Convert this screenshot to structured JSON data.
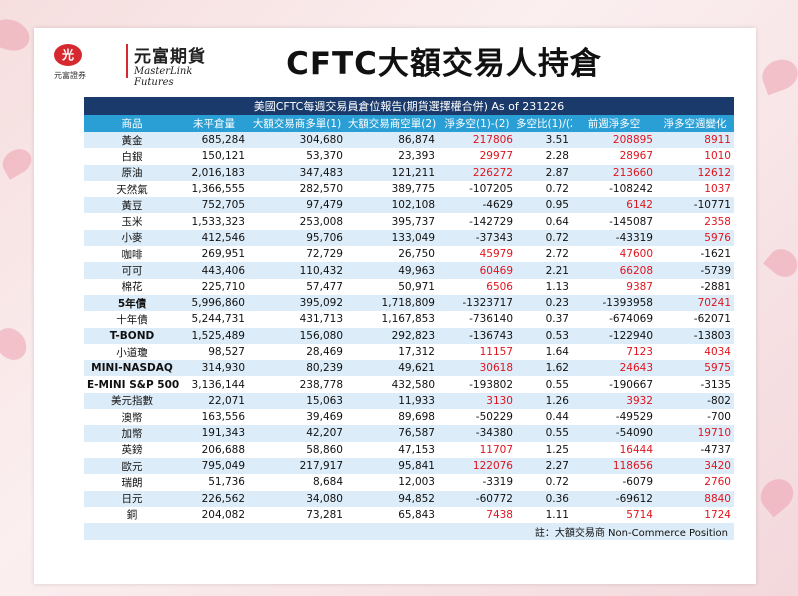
{
  "logo": {
    "badge": "光",
    "sub": "元富證券",
    "name": "元富期貨",
    "en": "MasterLink Futures"
  },
  "title": "CFTC大額交易人持倉",
  "table": {
    "caption": "美國CFTC每週交易員倉位報告(期貨選擇權合併) As of  231226",
    "headers": [
      "商品",
      "未平倉量",
      "大額交易商多單(1)",
      "大額交易商空單(2)",
      "淨多空(1)-(2)",
      "多空比(1)/(2)",
      "前週淨多空",
      "淨多空週變化"
    ],
    "rows": [
      {
        "name": "黃金",
        "oi": "685,284",
        "long": "304,680",
        "short": "86,874",
        "net": "217806",
        "ratio": "3.51",
        "prev": "208895",
        "chg": "8911",
        "net_red": true,
        "prev_red": true,
        "chg_red": true,
        "bold": false
      },
      {
        "name": "白銀",
        "oi": "150,121",
        "long": "53,370",
        "short": "23,393",
        "net": "29977",
        "ratio": "2.28",
        "prev": "28967",
        "chg": "1010",
        "net_red": true,
        "prev_red": true,
        "chg_red": true,
        "bold": false
      },
      {
        "name": "原油",
        "oi": "2,016,183",
        "long": "347,483",
        "short": "121,211",
        "net": "226272",
        "ratio": "2.87",
        "prev": "213660",
        "chg": "12612",
        "net_red": true,
        "prev_red": true,
        "chg_red": true,
        "bold": false
      },
      {
        "name": "天然氣",
        "oi": "1,366,555",
        "long": "282,570",
        "short": "389,775",
        "net": "-107205",
        "ratio": "0.72",
        "prev": "-108242",
        "chg": "1037",
        "net_red": false,
        "prev_red": false,
        "chg_red": true,
        "bold": false
      },
      {
        "name": "黃豆",
        "oi": "752,705",
        "long": "97,479",
        "short": "102,108",
        "net": "-4629",
        "ratio": "0.95",
        "prev": "6142",
        "chg": "-10771",
        "net_red": false,
        "prev_red": true,
        "chg_red": false,
        "bold": false
      },
      {
        "name": "玉米",
        "oi": "1,533,323",
        "long": "253,008",
        "short": "395,737",
        "net": "-142729",
        "ratio": "0.64",
        "prev": "-145087",
        "chg": "2358",
        "net_red": false,
        "prev_red": false,
        "chg_red": true,
        "bold": false
      },
      {
        "name": "小麥",
        "oi": "412,546",
        "long": "95,706",
        "short": "133,049",
        "net": "-37343",
        "ratio": "0.72",
        "prev": "-43319",
        "chg": "5976",
        "net_red": false,
        "prev_red": false,
        "chg_red": true,
        "bold": false
      },
      {
        "name": "咖啡",
        "oi": "269,951",
        "long": "72,729",
        "short": "26,750",
        "net": "45979",
        "ratio": "2.72",
        "prev": "47600",
        "chg": "-1621",
        "net_red": true,
        "prev_red": true,
        "chg_red": false,
        "bold": false
      },
      {
        "name": "可可",
        "oi": "443,406",
        "long": "110,432",
        "short": "49,963",
        "net": "60469",
        "ratio": "2.21",
        "prev": "66208",
        "chg": "-5739",
        "net_red": true,
        "prev_red": true,
        "chg_red": false,
        "bold": false
      },
      {
        "name": "棉花",
        "oi": "225,710",
        "long": "57,477",
        "short": "50,971",
        "net": "6506",
        "ratio": "1.13",
        "prev": "9387",
        "chg": "-2881",
        "net_red": true,
        "prev_red": true,
        "chg_red": false,
        "bold": false
      },
      {
        "name": "5年債",
        "oi": "5,996,860",
        "long": "395,092",
        "short": "1,718,809",
        "net": "-1323717",
        "ratio": "0.23",
        "prev": "-1393958",
        "chg": "70241",
        "net_red": false,
        "prev_red": false,
        "chg_red": true,
        "bold": true
      },
      {
        "name": "十年債",
        "oi": "5,244,731",
        "long": "431,713",
        "short": "1,167,853",
        "net": "-736140",
        "ratio": "0.37",
        "prev": "-674069",
        "chg": "-62071",
        "net_red": false,
        "prev_red": false,
        "chg_red": false,
        "bold": false
      },
      {
        "name": "T-BOND",
        "oi": "1,525,489",
        "long": "156,080",
        "short": "292,823",
        "net": "-136743",
        "ratio": "0.53",
        "prev": "-122940",
        "chg": "-13803",
        "net_red": false,
        "prev_red": false,
        "chg_red": false,
        "bold": true
      },
      {
        "name": "小道瓊",
        "oi": "98,527",
        "long": "28,469",
        "short": "17,312",
        "net": "11157",
        "ratio": "1.64",
        "prev": "7123",
        "chg": "4034",
        "net_red": true,
        "prev_red": true,
        "chg_red": true,
        "bold": false
      },
      {
        "name": "MINI-NASDAQ",
        "oi": "314,930",
        "long": "80,239",
        "short": "49,621",
        "net": "30618",
        "ratio": "1.62",
        "prev": "24643",
        "chg": "5975",
        "net_red": true,
        "prev_red": true,
        "chg_red": true,
        "bold": true
      },
      {
        "name": "E-MINI S&P 500",
        "oi": "3,136,144",
        "long": "238,778",
        "short": "432,580",
        "net": "-193802",
        "ratio": "0.55",
        "prev": "-190667",
        "chg": "-3135",
        "net_red": false,
        "prev_red": false,
        "chg_red": false,
        "bold": true
      },
      {
        "name": "美元指數",
        "oi": "22,071",
        "long": "15,063",
        "short": "11,933",
        "net": "3130",
        "ratio": "1.26",
        "prev": "3932",
        "chg": "-802",
        "net_red": true,
        "prev_red": true,
        "chg_red": false,
        "bold": false
      },
      {
        "name": "澳幣",
        "oi": "163,556",
        "long": "39,469",
        "short": "89,698",
        "net": "-50229",
        "ratio": "0.44",
        "prev": "-49529",
        "chg": "-700",
        "net_red": false,
        "prev_red": false,
        "chg_red": false,
        "bold": false
      },
      {
        "name": "加幣",
        "oi": "191,343",
        "long": "42,207",
        "short": "76,587",
        "net": "-34380",
        "ratio": "0.55",
        "prev": "-54090",
        "chg": "19710",
        "net_red": false,
        "prev_red": false,
        "chg_red": true,
        "bold": false
      },
      {
        "name": "英鎊",
        "oi": "206,688",
        "long": "58,860",
        "short": "47,153",
        "net": "11707",
        "ratio": "1.25",
        "prev": "16444",
        "chg": "-4737",
        "net_red": true,
        "prev_red": true,
        "chg_red": false,
        "bold": false
      },
      {
        "name": "歐元",
        "oi": "795,049",
        "long": "217,917",
        "short": "95,841",
        "net": "122076",
        "ratio": "2.27",
        "prev": "118656",
        "chg": "3420",
        "net_red": true,
        "prev_red": true,
        "chg_red": true,
        "bold": false
      },
      {
        "name": "瑞朗",
        "oi": "51,736",
        "long": "8,684",
        "short": "12,003",
        "net": "-3319",
        "ratio": "0.72",
        "prev": "-6079",
        "chg": "2760",
        "net_red": false,
        "prev_red": false,
        "chg_red": true,
        "bold": false
      },
      {
        "name": "日元",
        "oi": "226,562",
        "long": "34,080",
        "short": "94,852",
        "net": "-60772",
        "ratio": "0.36",
        "prev": "-69612",
        "chg": "8840",
        "net_red": false,
        "prev_red": false,
        "chg_red": true,
        "bold": false
      },
      {
        "name": "銅",
        "oi": "204,082",
        "long": "73,281",
        "short": "65,843",
        "net": "7438",
        "ratio": "1.11",
        "prev": "5714",
        "chg": "1724",
        "net_red": true,
        "prev_red": true,
        "chg_red": true,
        "bold": false
      }
    ],
    "note": "註：大額交易商 Non-Commerce Position"
  },
  "colors": {
    "caption_bg": "#1a3a6b",
    "header_bg": "#2a9fd6",
    "stripe": "#dcecf8",
    "positive": "#e0141e",
    "brand": "#d6282f"
  }
}
